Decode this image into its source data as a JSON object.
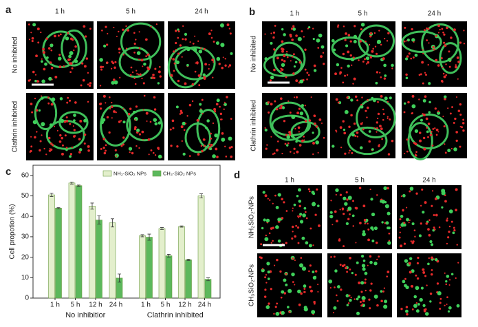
{
  "panels": {
    "a": {
      "label": "a",
      "columns": [
        "1 h",
        "5 h",
        "24 h"
      ],
      "rows": [
        "No inhibited",
        "Clathrin inhibited"
      ]
    },
    "b": {
      "label": "b",
      "columns": [
        "1 h",
        "5 h",
        "24 h"
      ],
      "rows": [
        "No inhibited",
        "Clathrin inhibited"
      ]
    },
    "d": {
      "label": "d",
      "columns": [
        "1 h",
        "5 h",
        "24 h"
      ],
      "rows": [
        "NH₂SiO₂-NPs",
        "CH₃SiO₂-NPs"
      ]
    }
  },
  "chart_data": {
    "type": "bar",
    "panel_label": "c",
    "y_label": "Cell propotion (%)",
    "categories": [
      "1 h",
      "5 h",
      "12 h",
      "24 h",
      "1 h",
      "5 h",
      "12 h",
      "24 h"
    ],
    "group_labels": [
      "No inhibitior",
      "Clathrin inhibited"
    ],
    "series": [
      {
        "name": "NH₂-SiO₂ NPs",
        "color": "#e3efcc",
        "values": [
          50.5,
          56.3,
          45,
          36.8,
          30.5,
          34,
          35,
          50
        ],
        "errors": [
          0.8,
          0.5,
          1.5,
          2,
          0.5,
          0.5,
          0.3,
          1
        ]
      },
      {
        "name": "CH₃-SiO₂ NPs",
        "color": "#5cb85c",
        "values": [
          44,
          55,
          38.2,
          9.8,
          29.8,
          20.7,
          18.7,
          9.2
        ],
        "errors": [
          0.3,
          0.3,
          2,
          2,
          1.5,
          0.7,
          0.3,
          0.7
        ]
      }
    ],
    "ylim": [
      0,
      65
    ],
    "yticks": [
      0,
      10,
      20,
      30,
      40,
      50,
      60
    ]
  }
}
